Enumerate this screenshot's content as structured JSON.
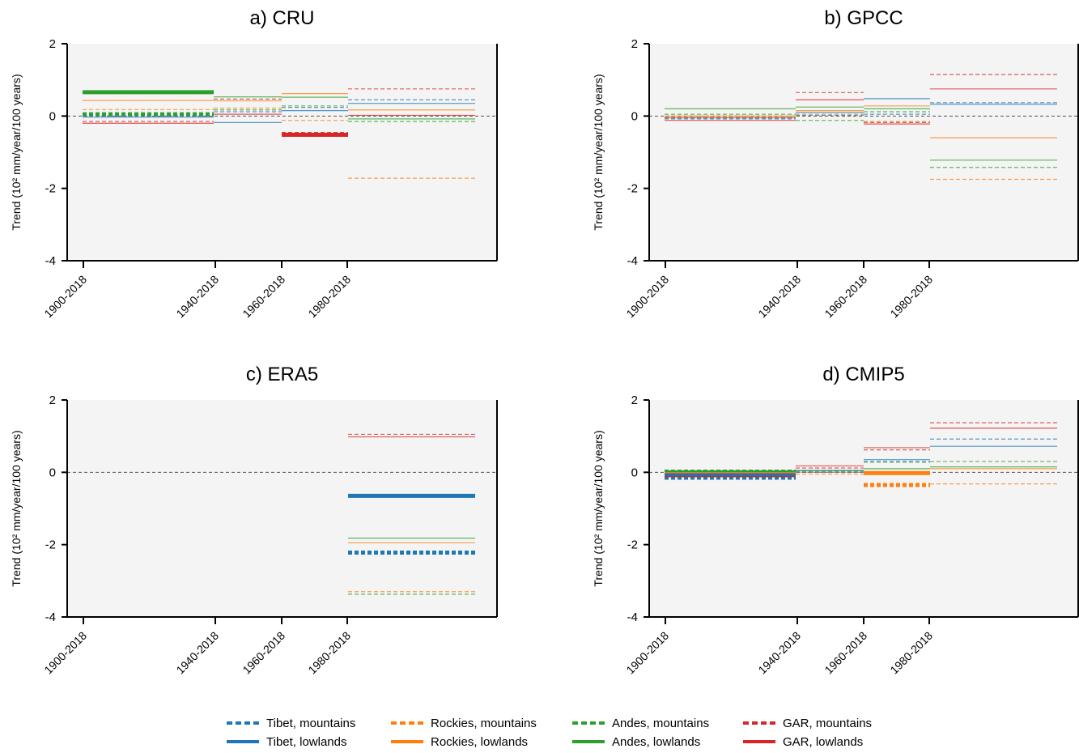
{
  "colors": {
    "Tibet": "#1f77b4",
    "Rockies": "#ff7f0e",
    "Andes": "#2ca02c",
    "GAR": "#d62728"
  },
  "legend": [
    {
      "label": "Tibet, mountains",
      "region": "Tibet",
      "style": "dashed"
    },
    {
      "label": "Tibet, lowlands",
      "region": "Tibet",
      "style": "solid"
    },
    {
      "label": "Rockies, mountains",
      "region": "Rockies",
      "style": "dashed"
    },
    {
      "label": "Rockies, lowlands",
      "region": "Rockies",
      "style": "solid"
    },
    {
      "label": "Andes, mountains",
      "region": "Andes",
      "style": "dashed"
    },
    {
      "label": "Andes, lowlands",
      "region": "Andes",
      "style": "solid"
    },
    {
      "label": "GAR, mountains",
      "region": "GAR",
      "style": "dashed"
    },
    {
      "label": "GAR, lowlands",
      "region": "GAR",
      "style": "solid"
    }
  ],
  "chart_data": [
    {
      "type": "line",
      "title": "a) CRU",
      "ylabel": "Trend (10² mm/year/100 years)",
      "ylim": [
        -4,
        2
      ],
      "yticks": [
        "2",
        "0",
        "-2",
        "-4"
      ],
      "periods": [
        "1900-2018",
        "1940-2018",
        "1960-2018",
        "1980-2018"
      ],
      "zero_line": true,
      "series": [
        {
          "region": "Andes",
          "type": "lowlands",
          "values": [
            0.66,
            0.53,
            0.52,
            -0.08
          ],
          "significant": [
            true,
            false,
            false,
            false
          ]
        },
        {
          "region": "Rockies",
          "type": "lowlands",
          "values": [
            0.43,
            0.42,
            0.62,
            0.17
          ],
          "significant": [
            false,
            false,
            false,
            false
          ]
        },
        {
          "region": "Rockies",
          "type": "mountains",
          "values": [
            0.18,
            0.22,
            -0.12,
            -1.72
          ],
          "significant": [
            false,
            false,
            false,
            false
          ]
        },
        {
          "region": "Andes",
          "type": "mountains",
          "values": [
            0.05,
            0.17,
            0.28,
            -0.15
          ],
          "significant": [
            true,
            false,
            false,
            false
          ]
        },
        {
          "region": "Tibet",
          "type": "mountains",
          "values": [
            0.0,
            0.12,
            0.24,
            0.45
          ],
          "significant": [
            false,
            false,
            false,
            false
          ]
        },
        {
          "region": "Tibet",
          "type": "lowlands",
          "values": [
            -0.03,
            -0.18,
            0.15,
            0.35
          ],
          "significant": [
            false,
            false,
            false,
            false
          ]
        },
        {
          "region": "GAR",
          "type": "mountains",
          "values": [
            -0.15,
            0.47,
            -0.5,
            0.75
          ],
          "significant": [
            false,
            false,
            true,
            false
          ]
        },
        {
          "region": "GAR",
          "type": "lowlands",
          "values": [
            -0.2,
            0.05,
            -0.52,
            0.02
          ],
          "significant": [
            false,
            false,
            true,
            false
          ]
        }
      ]
    },
    {
      "type": "line",
      "title": "b) GPCC",
      "ylabel": "Trend (10² mm/year/100 years)",
      "ylim": [
        -4,
        2
      ],
      "yticks": [
        "2",
        "0",
        "-2",
        "-4"
      ],
      "periods": [
        "1900-2018",
        "1940-2018",
        "1960-2018",
        "1980-2018"
      ],
      "zero_line": true,
      "series": [
        {
          "region": "Andes",
          "type": "lowlands",
          "values": [
            0.2,
            0.25,
            0.2,
            -1.22
          ],
          "significant": [
            false,
            false,
            false,
            false
          ]
        },
        {
          "region": "Andes",
          "type": "mountains",
          "values": [
            0.05,
            -0.12,
            0.12,
            -1.42
          ],
          "significant": [
            false,
            false,
            false,
            false
          ]
        },
        {
          "region": "Rockies",
          "type": "lowlands",
          "values": [
            0.0,
            0.15,
            0.28,
            -0.6
          ],
          "significant": [
            false,
            false,
            false,
            false
          ]
        },
        {
          "region": "Rockies",
          "type": "mountains",
          "values": [
            -0.02,
            0.05,
            -0.15,
            -1.75
          ],
          "significant": [
            false,
            false,
            false,
            false
          ]
        },
        {
          "region": "Tibet",
          "type": "lowlands",
          "values": [
            -0.05,
            0.1,
            0.48,
            0.33
          ],
          "significant": [
            false,
            false,
            false,
            false
          ]
        },
        {
          "region": "Tibet",
          "type": "mountains",
          "values": [
            -0.08,
            0.02,
            0.05,
            0.37
          ],
          "significant": [
            false,
            false,
            false,
            false
          ]
        },
        {
          "region": "GAR",
          "type": "mountains",
          "values": [
            -0.05,
            0.65,
            -0.18,
            1.15
          ],
          "significant": [
            false,
            false,
            false,
            false
          ]
        },
        {
          "region": "GAR",
          "type": "lowlands",
          "values": [
            -0.12,
            0.45,
            -0.22,
            0.75
          ],
          "significant": [
            false,
            false,
            false,
            false
          ]
        }
      ]
    },
    {
      "type": "line",
      "title": "c) ERA5",
      "ylabel": "Trend (10² mm/year/100 years)",
      "ylim": [
        -4,
        2
      ],
      "yticks": [
        "2",
        "0",
        "-2",
        "-4"
      ],
      "periods": [
        "1900-2018",
        "1940-2018",
        "1960-2018",
        "1980-2018"
      ],
      "zero_line": true,
      "series": [
        {
          "region": "GAR",
          "type": "mountains",
          "values": [
            null,
            null,
            null,
            1.05
          ],
          "significant": [
            false,
            false,
            false,
            false
          ]
        },
        {
          "region": "GAR",
          "type": "lowlands",
          "values": [
            null,
            null,
            null,
            0.98
          ],
          "significant": [
            false,
            false,
            false,
            false
          ]
        },
        {
          "region": "Tibet",
          "type": "lowlands",
          "values": [
            null,
            null,
            null,
            -0.65
          ],
          "significant": [
            false,
            false,
            false,
            true
          ]
        },
        {
          "region": "Andes",
          "type": "lowlands",
          "values": [
            null,
            null,
            null,
            -1.82
          ],
          "significant": [
            false,
            false,
            false,
            false
          ]
        },
        {
          "region": "Rockies",
          "type": "lowlands",
          "values": [
            null,
            null,
            null,
            -1.95
          ],
          "significant": [
            false,
            false,
            false,
            false
          ]
        },
        {
          "region": "Tibet",
          "type": "mountains",
          "values": [
            null,
            null,
            null,
            -2.22
          ],
          "significant": [
            false,
            false,
            false,
            true
          ]
        },
        {
          "region": "Rockies",
          "type": "mountains",
          "values": [
            null,
            null,
            null,
            -3.3
          ],
          "significant": [
            false,
            false,
            false,
            false
          ]
        },
        {
          "region": "Andes",
          "type": "mountains",
          "values": [
            null,
            null,
            null,
            -3.37
          ],
          "significant": [
            false,
            false,
            false,
            false
          ]
        }
      ]
    },
    {
      "type": "line",
      "title": "d) CMIP5",
      "ylabel": "Trend (10² mm/year/100 years)",
      "ylim": [
        -4,
        2
      ],
      "yticks": [
        "2",
        "0",
        "-2",
        "-4"
      ],
      "periods": [
        "1900-2018",
        "1940-2018",
        "1960-2018",
        "1980-2018"
      ],
      "zero_line": true,
      "series": [
        {
          "region": "Andes",
          "type": "mountains",
          "values": [
            0.02,
            0.03,
            0.28,
            0.3
          ],
          "significant": [
            true,
            false,
            false,
            false
          ]
        },
        {
          "region": "Andes",
          "type": "lowlands",
          "values": [
            0.0,
            0.05,
            0.1,
            0.15
          ],
          "significant": [
            true,
            false,
            false,
            false
          ]
        },
        {
          "region": "Rockies",
          "type": "lowlands",
          "values": [
            -0.05,
            0.0,
            -0.02,
            0.1
          ],
          "significant": [
            true,
            false,
            true,
            false
          ]
        },
        {
          "region": "Rockies",
          "type": "mountains",
          "values": [
            -0.1,
            -0.05,
            -0.35,
            -0.32
          ],
          "significant": [
            true,
            false,
            true,
            false
          ]
        },
        {
          "region": "Tibet",
          "type": "lowlands",
          "values": [
            -0.08,
            0.05,
            0.35,
            0.72
          ],
          "significant": [
            true,
            false,
            false,
            false
          ]
        },
        {
          "region": "Tibet",
          "type": "mountains",
          "values": [
            -0.15,
            0.0,
            0.3,
            0.92
          ],
          "significant": [
            true,
            false,
            false,
            false
          ]
        },
        {
          "region": "GAR",
          "type": "mountains",
          "values": [
            -0.1,
            0.12,
            0.62,
            1.37
          ],
          "significant": [
            false,
            false,
            false,
            false
          ]
        },
        {
          "region": "GAR",
          "type": "lowlands",
          "values": [
            -0.12,
            0.18,
            0.68,
            1.22
          ],
          "significant": [
            false,
            false,
            false,
            false
          ]
        }
      ]
    }
  ]
}
